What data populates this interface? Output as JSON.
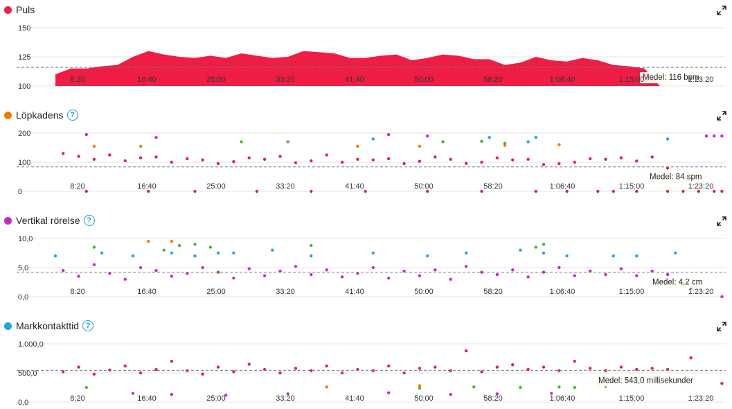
{
  "panels": [
    {
      "id": "puls",
      "title": "Puls",
      "help": false
    },
    {
      "id": "cadence",
      "title": "Löpkadens",
      "help": true
    },
    {
      "id": "vertical",
      "title": "Vertikal rörelse",
      "help": true
    },
    {
      "id": "contact",
      "title": "Markkontakttid",
      "help": true
    }
  ],
  "help_symbol": "?",
  "expand_icon": "expand-arrows-icon",
  "colors": {
    "red": "#ee1d45",
    "orange": "#ef7d00",
    "purple": "#c42bc6",
    "blue": "#1aa7e2",
    "green": "#4ab52e",
    "grid": "#e6e6e6",
    "avg_line": "#777777"
  },
  "chart_data": [
    {
      "type": "area",
      "title": "Puls",
      "x_ticks": [
        "8:20",
        "16:40",
        "25:00",
        "33:20",
        "41:40",
        "50:00",
        "58:20",
        "1:06:40",
        "1:15:00",
        "1:23:20"
      ],
      "y_ticks": [
        "150",
        "125",
        "100"
      ],
      "ylim": [
        100,
        150
      ],
      "xlim_minutes": [
        0,
        86.5
      ],
      "average": {
        "value": 116,
        "label": "Medel: 116 bpm"
      },
      "series": [
        {
          "x": [
            0,
            2,
            4,
            6,
            8,
            10,
            12,
            14,
            16,
            18,
            20,
            22,
            24,
            26,
            28,
            30,
            32,
            34,
            36,
            38,
            40,
            42,
            44,
            46,
            48,
            50,
            52,
            54,
            56,
            58,
            60,
            62,
            64,
            66,
            68,
            70,
            72,
            74,
            76,
            78,
            80,
            82,
            84,
            86
          ],
          "y": [
            110,
            115,
            115,
            117,
            118,
            125,
            130,
            127,
            125,
            124,
            126,
            124,
            128,
            126,
            124,
            125,
            130,
            129,
            128,
            124,
            124,
            126,
            127,
            122,
            124,
            127,
            126,
            123,
            123,
            118,
            120,
            125,
            122,
            121,
            124,
            122,
            118,
            117,
            115,
            100,
            100,
            100,
            100,
            100
          ]
        }
      ]
    },
    {
      "type": "scatter",
      "title": "Löpkadens",
      "x_ticks": [
        "8:20",
        "16:40",
        "25:00",
        "33:20",
        "41:40",
        "50:00",
        "58:20",
        "1:06:40",
        "1:15:00",
        "1:23:20"
      ],
      "y_ticks": [
        "200",
        "100",
        "0"
      ],
      "ylim": [
        0,
        200
      ],
      "xlim_minutes": [
        0,
        86.5
      ],
      "average": {
        "value": 84,
        "label": "Medel: 84 spm"
      },
      "series": [
        {
          "name": "red",
          "x": [
            1,
            3,
            5,
            7,
            9,
            11,
            13,
            15,
            17,
            19,
            21,
            23,
            25,
            27,
            29,
            31,
            33,
            35,
            37,
            39,
            41,
            43,
            45,
            47,
            49,
            51,
            53,
            55,
            57,
            59,
            61,
            63,
            65,
            67,
            69,
            71,
            73,
            75,
            77,
            79
          ],
          "y": [
            130,
            120,
            110,
            125,
            105,
            115,
            118,
            100,
            112,
            108,
            95,
            102,
            115,
            110,
            120,
            98,
            105,
            125,
            100,
            110,
            108,
            112,
            95,
            103,
            118,
            110,
            96,
            100,
            115,
            108,
            110,
            92,
            95,
            100,
            112,
            110,
            115,
            104,
            118,
            80
          ]
        },
        {
          "name": "red-zero",
          "x": [
            4,
            12,
            18,
            26,
            33,
            40,
            48,
            55,
            62,
            66,
            70,
            72,
            75,
            79,
            81,
            83,
            85,
            86
          ],
          "y": [
            0,
            0,
            0,
            0,
            0,
            0,
            0,
            0,
            0,
            0,
            0,
            0,
            0,
            0,
            0,
            0,
            0,
            0
          ]
        },
        {
          "name": "orange",
          "x": [
            5,
            11,
            39,
            47,
            58,
            65
          ],
          "y": [
            155,
            155,
            155,
            155,
            158,
            160
          ]
        },
        {
          "name": "green",
          "x": [
            24,
            30,
            50,
            55,
            58
          ],
          "y": [
            170,
            170,
            170,
            172,
            165
          ]
        },
        {
          "name": "blue",
          "x": [
            41,
            56,
            61,
            62,
            79
          ],
          "y": [
            180,
            185,
            170,
            185,
            180
          ]
        },
        {
          "name": "purple",
          "x": [
            4,
            13,
            43,
            48,
            84,
            85,
            86
          ],
          "y": [
            195,
            185,
            195,
            190,
            190,
            190,
            190
          ]
        }
      ]
    },
    {
      "type": "scatter",
      "title": "Vertikal rörelse",
      "x_ticks": [
        "8:20",
        "16:40",
        "25:00",
        "33:20",
        "41:40",
        "50:00",
        "58:20",
        "1:06:40",
        "1:15:00",
        "1:23:20"
      ],
      "y_ticks": [
        "10,0",
        "5,0",
        "0,0"
      ],
      "ylim": [
        0,
        10
      ],
      "xlim_minutes": [
        0,
        86.5
      ],
      "average": {
        "value": 4.2,
        "label": "Medel: 4,2 cm"
      },
      "series": [
        {
          "name": "purple",
          "x": [
            1,
            3,
            5,
            7,
            9,
            11,
            13,
            15,
            17,
            19,
            21,
            23,
            25,
            27,
            29,
            31,
            33,
            35,
            37,
            39,
            41,
            43,
            45,
            47,
            49,
            51,
            53,
            55,
            57,
            59,
            61,
            63,
            65,
            67,
            69,
            71,
            73,
            75,
            77,
            79,
            82,
            86
          ],
          "y": [
            4.5,
            3.5,
            5.5,
            4.0,
            3.0,
            5.0,
            4.5,
            3.5,
            4.0,
            5.0,
            4.2,
            3.2,
            4.8,
            3.6,
            4.4,
            5.2,
            3.8,
            4.6,
            3.4,
            4.0,
            5.0,
            3.2,
            4.4,
            3.6,
            4.6,
            3.0,
            5.2,
            4.2,
            3.8,
            4.6,
            3.4,
            4.2,
            5.0,
            3.6,
            4.4,
            3.8,
            4.8,
            3.6,
            4.4,
            3.8,
            1.5,
            0.0
          ]
        },
        {
          "name": "blue",
          "x": [
            0,
            6,
            10,
            15,
            18,
            21,
            23,
            28,
            33,
            41,
            48,
            53,
            60,
            63,
            66,
            72,
            75,
            80
          ],
          "y": [
            7.0,
            7.5,
            7.0,
            7.5,
            7.0,
            7.5,
            7.5,
            8.0,
            7.0,
            7.5,
            7.0,
            7.5,
            8.0,
            7.5,
            7.0,
            7.0,
            7.0,
            7.5
          ]
        },
        {
          "name": "green",
          "x": [
            5,
            14,
            16,
            18,
            20,
            33,
            62,
            63
          ],
          "y": [
            8.5,
            8.0,
            8.8,
            9.0,
            8.5,
            8.8,
            8.5,
            9.0
          ]
        },
        {
          "name": "orange",
          "x": [
            12,
            15
          ],
          "y": [
            9.5,
            9.5
          ]
        }
      ]
    },
    {
      "type": "scatter",
      "title": "Markkontakttid",
      "x_ticks": [
        "8:20",
        "16:40",
        "25:00",
        "33:20",
        "41:40",
        "50:00",
        "58:20",
        "1:06:40",
        "1:15:00",
        "1:23:20"
      ],
      "y_ticks": [
        "1.000,0",
        "500,0",
        "0,0"
      ],
      "ylim": [
        0,
        1000
      ],
      "xlim_minutes": [
        0,
        86.5
      ],
      "average": {
        "value": 543,
        "label": "Medel: 543,0 millisekunder"
      },
      "series": [
        {
          "name": "red",
          "x": [
            1,
            3,
            5,
            7,
            9,
            11,
            13,
            15,
            17,
            19,
            21,
            23,
            25,
            27,
            29,
            31,
            33,
            35,
            37,
            39,
            41,
            43,
            45,
            47,
            49,
            51,
            53,
            55,
            57,
            59,
            61,
            63,
            65,
            67,
            69,
            71,
            73,
            75,
            77,
            79,
            82,
            86
          ],
          "y": [
            520,
            600,
            480,
            550,
            620,
            500,
            560,
            700,
            540,
            480,
            600,
            520,
            650,
            560,
            500,
            580,
            540,
            620,
            500,
            560,
            540,
            620,
            500,
            580,
            600,
            540,
            880,
            520,
            600,
            640,
            560,
            600,
            540,
            700,
            580,
            540,
            600,
            560,
            580,
            560,
            760,
            320
          ]
        },
        {
          "name": "green",
          "x": [
            4,
            47,
            54,
            60,
            65,
            67,
            71
          ],
          "y": [
            250,
            240,
            260,
            250,
            260,
            250,
            270
          ]
        },
        {
          "name": "orange",
          "x": [
            35,
            47,
            70
          ],
          "y": [
            260,
            280,
            300
          ]
        },
        {
          "name": "purple",
          "x": [
            10,
            15,
            22,
            30,
            43,
            51,
            57,
            64
          ],
          "y": [
            150,
            130,
            120,
            140,
            160,
            130,
            140,
            150
          ]
        }
      ]
    }
  ]
}
